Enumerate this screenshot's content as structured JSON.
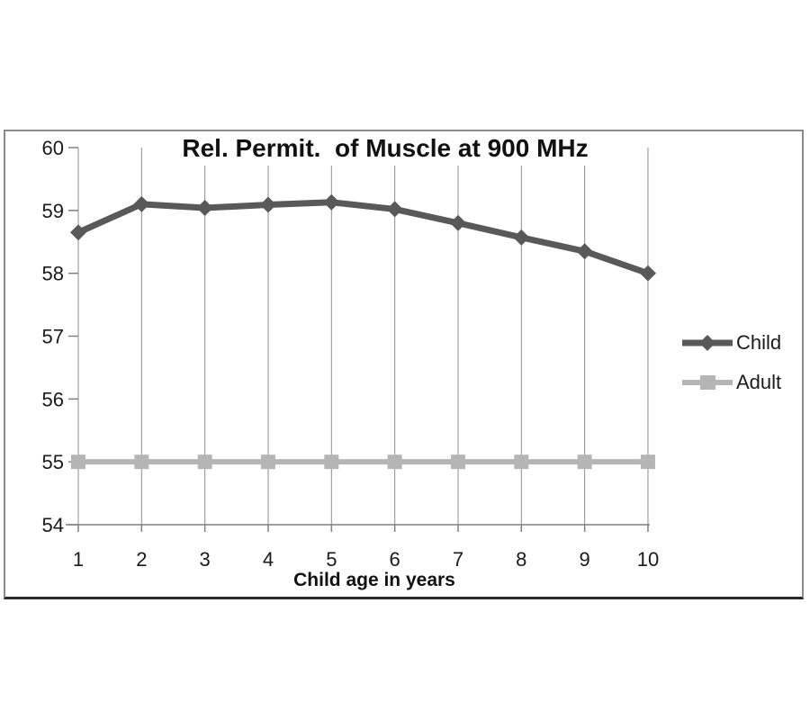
{
  "chart_data": {
    "type": "line",
    "title": "Rel. Permit.  of Muscle at 900 MHz",
    "xlabel": "Child age in years",
    "ylabel": "",
    "categories": [
      "1",
      "2",
      "3",
      "4",
      "5",
      "6",
      "7",
      "8",
      "9",
      "10"
    ],
    "series": [
      {
        "name": "Child",
        "values": [
          58.65,
          59.1,
          59.04,
          59.09,
          59.13,
          59.02,
          58.8,
          58.57,
          58.35,
          58.0
        ],
        "color": "#595959",
        "marker": "diamond",
        "line_width": 7
      },
      {
        "name": "Adult",
        "values": [
          55,
          55,
          55,
          55,
          55,
          55,
          55,
          55,
          55,
          55
        ],
        "color": "#b5b5b5",
        "marker": "square",
        "line_width": 6
      }
    ],
    "ylim": [
      54,
      60
    ],
    "y_ticks": [
      "60",
      "59",
      "58",
      "57",
      "56",
      "55",
      "54"
    ],
    "grid": "vertical-on",
    "legend_position": "right-middle",
    "colors": {
      "gridline": "#8c8c8c",
      "axis": "#808080",
      "tick_text": "#1a1a1a",
      "frame_border": "#8a8a8a",
      "frame_bottom": "#2a2a2a"
    }
  }
}
